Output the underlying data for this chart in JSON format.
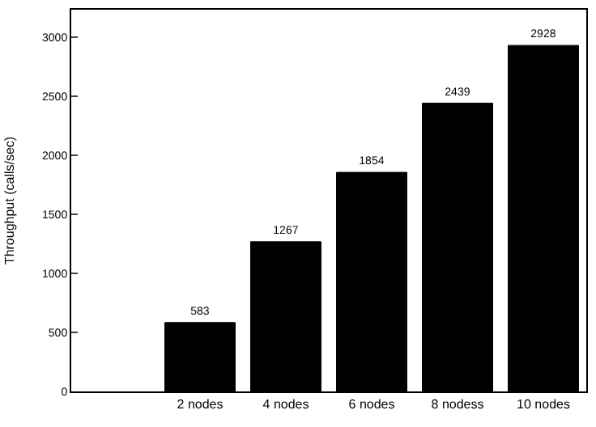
{
  "chart_data": {
    "type": "bar",
    "ylabel": "Throughput (calls/sec)",
    "categories": [
      null,
      "2 nodes",
      "4 nodes",
      "6 nodes",
      "8 nodess",
      "10 nodes"
    ],
    "values": [
      null,
      583,
      1267,
      1854,
      2439,
      2928
    ],
    "color": "#000000",
    "ylim": [
      0,
      3230
    ],
    "yticks": [
      0,
      500,
      1000,
      1500,
      2000,
      2500,
      3000
    ],
    "data_labels": true
  }
}
